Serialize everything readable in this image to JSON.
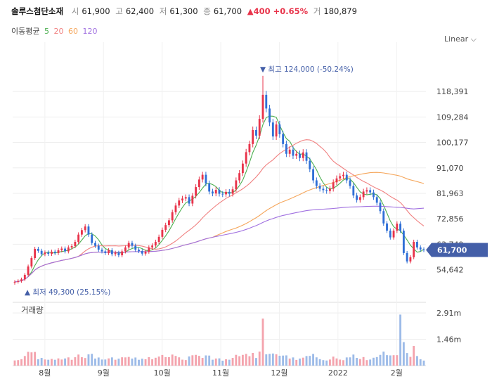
{
  "header": {
    "stock_name": "솔루스첨단소재",
    "open_label": "시",
    "open": "61,900",
    "high_label": "고",
    "high": "62,400",
    "low_label": "저",
    "low": "61,300",
    "close_label": "종",
    "close": "61,700",
    "change": "▲400",
    "change_pct": "+0.65%",
    "volume_label": "거",
    "volume": "180,879"
  },
  "ma_legend": {
    "title": "이동평균",
    "items": [
      {
        "label": "5",
        "color": "#4caf50"
      },
      {
        "label": "20",
        "color": "#f08080"
      },
      {
        "label": "60",
        "color": "#f5a65b"
      },
      {
        "label": "120",
        "color": "#a070e0"
      }
    ]
  },
  "scale_toggle": "Linear ⌵",
  "colors": {
    "up": "#e8334a",
    "down": "#2f6fd6",
    "last_price_tag": "#445fa8",
    "volume_up": "#f4a3ad",
    "volume_down": "#9dbbe8"
  },
  "chart_data": {
    "type": "candlestick",
    "y_ticks": [
      "118,391",
      "109,284",
      "100,177",
      "91,070",
      "81,963",
      "72,856",
      "63,749",
      "54,642"
    ],
    "y_tick_values": [
      118391,
      109284,
      100177,
      91070,
      81963,
      72856,
      63749,
      54642
    ],
    "ylim": [
      48000,
      131000
    ],
    "x_labels": [
      "8월",
      "9월",
      "10월",
      "11월",
      "12월",
      "2022",
      "2월"
    ],
    "high_marker": {
      "text": "최고 124,000 (-50.24%)",
      "value": 124000
    },
    "low_marker": {
      "text": "최저 49,300 (25.15%)",
      "value": 49300
    },
    "last_price": {
      "text": "61,700",
      "value": 61700
    },
    "price_path": [
      50300,
      50600,
      51200,
      52800,
      55800,
      58800,
      62100,
      61400,
      60200,
      60800,
      60300,
      61100,
      60600,
      61600,
      62200,
      61200,
      62600,
      63100,
      64600,
      67200,
      68800,
      70100,
      67200,
      64200,
      63200,
      61800,
      61200,
      60600,
      61600,
      60200,
      60700,
      59800,
      61200,
      62600,
      64200,
      63200,
      61800,
      61300,
      60400,
      61100,
      62600,
      63300,
      64600,
      66400,
      68900,
      70600,
      72300,
      75200,
      77600,
      79400,
      80100,
      80600,
      78300,
      81100,
      84200,
      86900,
      88600,
      85500,
      82600,
      81900,
      83200,
      81800,
      81600,
      82500,
      81800,
      83400,
      86600,
      89200,
      92600,
      96700,
      99600,
      104600,
      102600,
      108600,
      117200,
      112300,
      107300,
      102300,
      106600,
      103100,
      99600,
      96100,
      97600,
      95400,
      96100,
      94600,
      96600,
      93600,
      90600,
      86600,
      84600,
      83600,
      83100,
      82800,
      83600,
      85900,
      87300,
      88100,
      88600,
      86600,
      84600,
      81200,
      79600,
      80600,
      82600,
      83100,
      82300,
      80600,
      78600,
      75600,
      71200,
      68600,
      66200,
      68600,
      71100,
      68600,
      60600,
      57600,
      59100,
      64600,
      62600,
      61900,
      61700
    ],
    "volume": {
      "label": "거래량",
      "ticks": [
        "2.91m",
        "1.46m"
      ],
      "tick_values": [
        2910000,
        1460000
      ],
      "ylim": [
        0,
        3500000
      ]
    }
  }
}
